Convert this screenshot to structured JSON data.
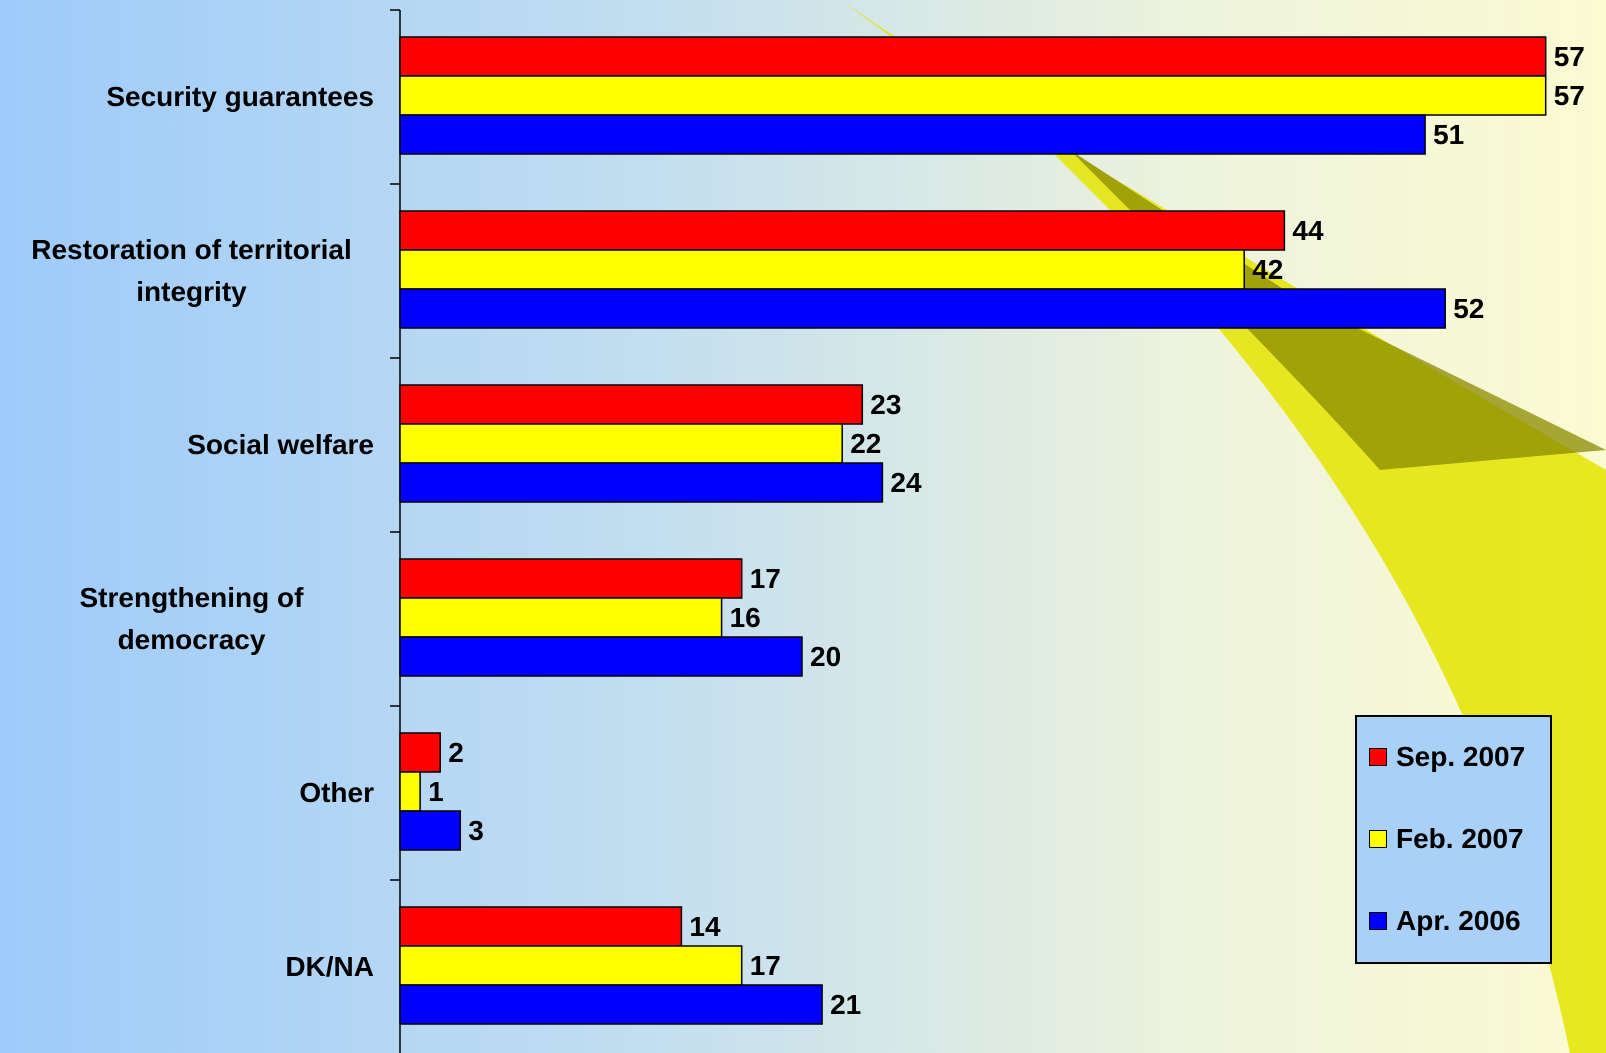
{
  "chart_data": {
    "type": "bar",
    "categories": [
      "Security guarantees",
      "Restoration of territorial integrity",
      "Social welfare",
      "Strengthening of democracy",
      "Other",
      "DK/NA"
    ],
    "series": [
      {
        "name": "Sep. 2007",
        "color": "#ff0000",
        "values": [
          57,
          44,
          23,
          17,
          2,
          14
        ]
      },
      {
        "name": "Feb. 2007",
        "color": "#ffff00",
        "values": [
          57,
          42,
          22,
          16,
          1,
          17
        ]
      },
      {
        "name": "Apr. 2006",
        "color": "#0000ff",
        "values": [
          51,
          52,
          24,
          20,
          3,
          21
        ]
      }
    ],
    "xlim": [
      0,
      60
    ]
  }
}
